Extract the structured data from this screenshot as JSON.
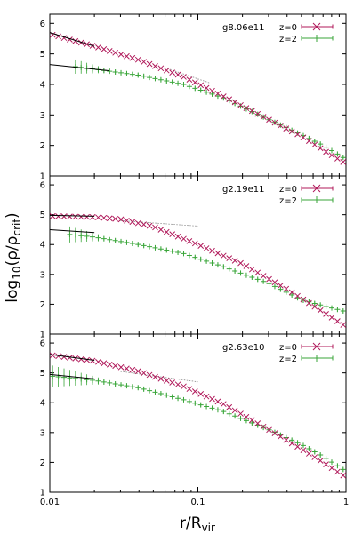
{
  "chart_data": {
    "type": "scatter",
    "xlabel_main": "r/R",
    "xlabel_sub": "vir",
    "ylabel_pre": "log",
    "ylabel_sub1": "10",
    "ylabel_mid": "(ρ/ρ",
    "ylabel_sub2": "crit",
    "ylabel_post": ")",
    "xscale": "log",
    "xlim": [
      0.01,
      1
    ],
    "x_ticks": [
      {
        "value": 0.01,
        "label": "0.01"
      },
      {
        "value": 0.1,
        "label": "0.1"
      },
      {
        "value": 1,
        "label": "1"
      }
    ],
    "ylim": [
      1,
      6.3
    ],
    "y_ticks": [
      {
        "value": 1,
        "label": "1"
      },
      {
        "value": 2,
        "label": "2"
      },
      {
        "value": 3,
        "label": "3"
      },
      {
        "value": 4,
        "label": "4"
      },
      {
        "value": 5,
        "label": "5"
      },
      {
        "value": 6,
        "label": "6"
      }
    ],
    "colors": {
      "z0": "#b0195a",
      "z2": "#3aa63a",
      "fit": "#000000",
      "dotted": "#888888"
    },
    "panels": [
      {
        "label": "g8.06e11",
        "legend": [
          {
            "key": "z0",
            "name": "z=0"
          },
          {
            "key": "z2",
            "name": "z=2"
          }
        ],
        "z0_anchors": [
          [
            0.01,
            5.65
          ],
          [
            0.02,
            5.25
          ],
          [
            0.04,
            4.8
          ],
          [
            0.08,
            4.25
          ],
          [
            0.15,
            3.6
          ],
          [
            0.3,
            2.85
          ],
          [
            0.5,
            2.3
          ],
          [
            0.7,
            1.85
          ],
          [
            1.0,
            1.4
          ]
        ],
        "z2_anchors": [
          [
            0.014,
            4.6
          ],
          [
            0.02,
            4.5
          ],
          [
            0.04,
            4.3
          ],
          [
            0.08,
            4.0
          ],
          [
            0.15,
            3.55
          ],
          [
            0.3,
            2.85
          ],
          [
            0.5,
            2.35
          ],
          [
            0.7,
            2.0
          ],
          [
            1.0,
            1.55
          ]
        ],
        "fit_z0": [
          [
            0.01,
            5.7
          ],
          [
            0.02,
            5.25
          ]
        ],
        "fit_z2": [
          [
            0.01,
            4.65
          ],
          [
            0.025,
            4.45
          ]
        ],
        "dotted": [
          [
            0.06,
            4.55
          ],
          [
            0.12,
            4.05
          ]
        ]
      },
      {
        "label": "g2.19e11",
        "legend": [
          {
            "key": "z0",
            "name": "z=0"
          },
          {
            "key": "z2",
            "name": "z=2"
          }
        ],
        "z0_anchors": [
          [
            0.01,
            4.95
          ],
          [
            0.02,
            4.92
          ],
          [
            0.03,
            4.85
          ],
          [
            0.05,
            4.6
          ],
          [
            0.1,
            4.0
          ],
          [
            0.2,
            3.35
          ],
          [
            0.4,
            2.5
          ],
          [
            0.6,
            1.95
          ],
          [
            1.0,
            1.25
          ]
        ],
        "z2_anchors": [
          [
            0.013,
            4.35
          ],
          [
            0.02,
            4.25
          ],
          [
            0.04,
            4.0
          ],
          [
            0.08,
            3.7
          ],
          [
            0.15,
            3.25
          ],
          [
            0.3,
            2.7
          ],
          [
            0.5,
            2.15
          ],
          [
            0.7,
            1.95
          ],
          [
            1.0,
            1.75
          ]
        ],
        "fit_z0": [
          [
            0.01,
            4.98
          ],
          [
            0.02,
            4.95
          ]
        ],
        "fit_z2": [
          [
            0.01,
            4.5
          ],
          [
            0.02,
            4.4
          ]
        ],
        "dotted": [
          [
            0.03,
            4.8
          ],
          [
            0.1,
            4.62
          ]
        ]
      },
      {
        "label": "g2.63e10",
        "legend": [
          {
            "key": "z0",
            "name": "z=0"
          },
          {
            "key": "z2",
            "name": "z=2"
          }
        ],
        "z0_anchors": [
          [
            0.01,
            5.6
          ],
          [
            0.02,
            5.4
          ],
          [
            0.04,
            5.05
          ],
          [
            0.08,
            4.55
          ],
          [
            0.15,
            3.95
          ],
          [
            0.3,
            3.1
          ],
          [
            0.5,
            2.45
          ],
          [
            0.7,
            2.0
          ],
          [
            1.0,
            1.5
          ]
        ],
        "z2_anchors": [
          [
            0.01,
            4.9
          ],
          [
            0.02,
            4.75
          ],
          [
            0.04,
            4.5
          ],
          [
            0.08,
            4.1
          ],
          [
            0.15,
            3.7
          ],
          [
            0.3,
            3.1
          ],
          [
            0.5,
            2.6
          ],
          [
            0.7,
            2.2
          ],
          [
            1.0,
            1.7
          ]
        ],
        "fit_z0": [
          [
            0.01,
            5.62
          ],
          [
            0.02,
            5.42
          ]
        ],
        "fit_z2": [
          [
            0.01,
            4.95
          ],
          [
            0.02,
            4.8
          ]
        ],
        "dotted": [
          [
            0.03,
            5.05
          ],
          [
            0.1,
            4.7
          ]
        ]
      }
    ]
  }
}
